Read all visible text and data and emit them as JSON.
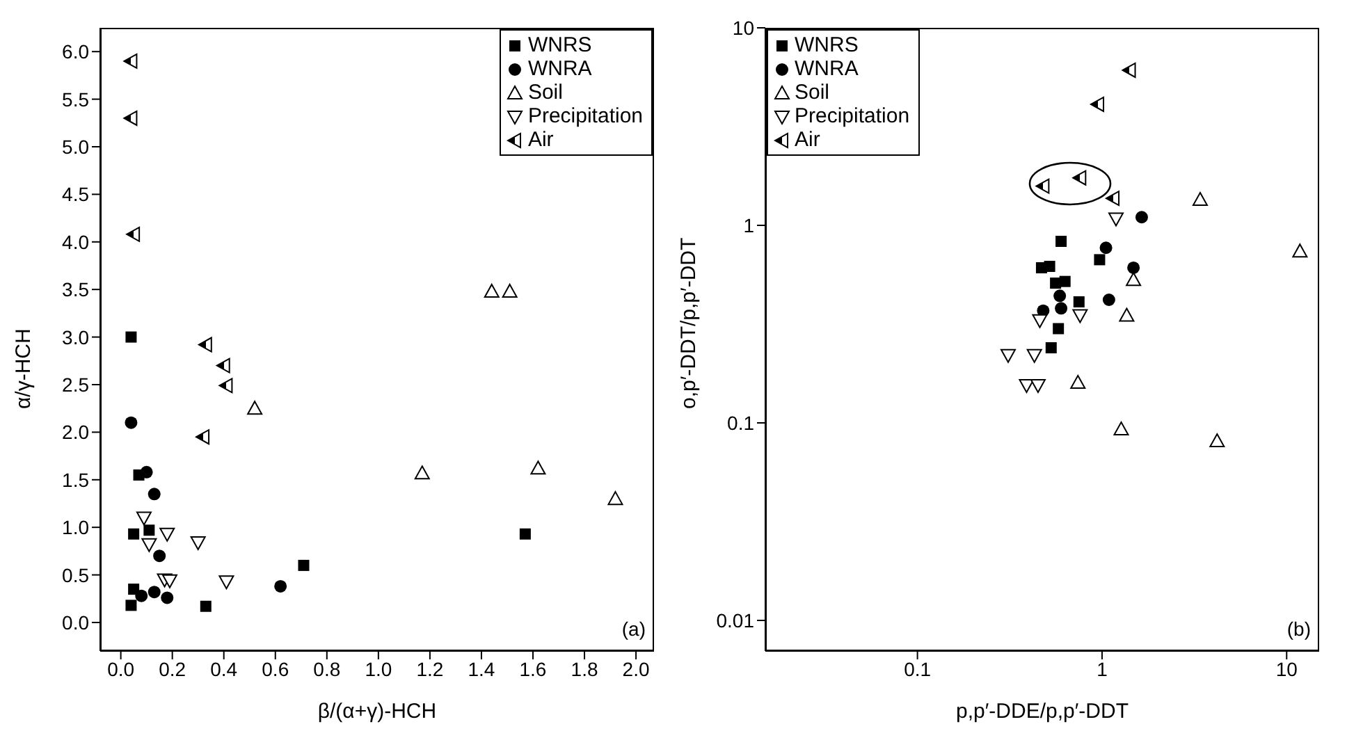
{
  "chart_data": [
    {
      "type": "scatter",
      "xlabel": "β/(α+γ)-HCH",
      "ylabel": "α/γ-HCH",
      "xlim": [
        -0.08,
        2.07
      ],
      "ylim": [
        -0.3,
        6.25
      ],
      "xticks": [
        {
          "value": 0,
          "label": "0.0"
        },
        {
          "value": 0.2,
          "label": "0.2"
        },
        {
          "value": 0.4,
          "label": "0.4"
        },
        {
          "value": 0.6,
          "label": "0.6"
        },
        {
          "value": 0.8,
          "label": "0.8"
        },
        {
          "value": 1,
          "label": "1.0"
        },
        {
          "value": 1.2,
          "label": "1.2"
        },
        {
          "value": 1.4,
          "label": "1.4"
        },
        {
          "value": 1.6,
          "label": "1.6"
        },
        {
          "value": 1.8,
          "label": "1.8"
        },
        {
          "value": 2,
          "label": "2.0"
        }
      ],
      "yticks": [
        {
          "value": 0,
          "label": "0.0"
        },
        {
          "value": 0.5,
          "label": "0.5"
        },
        {
          "value": 1,
          "label": "1.0"
        },
        {
          "value": 1.5,
          "label": "1.5"
        },
        {
          "value": 2,
          "label": "2.0"
        },
        {
          "value": 2.5,
          "label": "2.5"
        },
        {
          "value": 3,
          "label": "3.0"
        },
        {
          "value": 3.5,
          "label": "3.5"
        },
        {
          "value": 4,
          "label": "4.0"
        },
        {
          "value": 4.5,
          "label": "4.5"
        },
        {
          "value": 5,
          "label": "5.0"
        },
        {
          "value": 5.5,
          "label": "5.5"
        },
        {
          "value": 6,
          "label": "6.0"
        }
      ],
      "grid": false,
      "legend": "top right",
      "annotations": [
        "(a)"
      ],
      "series": [
        {
          "name": "WNRS",
          "color": "#000000",
          "marker": "square",
          "x": [
            0.04,
            0.05,
            0.07,
            0.11,
            1.57,
            0.71,
            0.05,
            0.04,
            0.33
          ],
          "values": [
            3.0,
            0.93,
            1.55,
            0.97,
            0.93,
            0.6,
            0.35,
            0.18,
            0.17
          ]
        },
        {
          "name": "WNRA",
          "color": "#000000",
          "marker": "circle",
          "x": [
            0.04,
            0.1,
            0.13,
            0.15,
            0.62,
            0.08,
            0.13,
            0.18
          ],
          "values": [
            2.1,
            1.58,
            1.35,
            0.7,
            0.38,
            0.28,
            0.32,
            0.26
          ]
        },
        {
          "name": "Soil",
          "color": "#000000",
          "marker": "triangle",
          "x": [
            1.44,
            1.51,
            0.52,
            1.17,
            1.62,
            1.92
          ],
          "values": [
            3.48,
            3.48,
            2.25,
            1.57,
            1.62,
            1.3
          ]
        },
        {
          "name": "Precipitation",
          "color": "#000000",
          "marker": "triangle-down",
          "x": [
            0.09,
            0.11,
            0.18,
            0.3,
            0.17,
            0.19,
            0.41
          ],
          "values": [
            1.1,
            0.82,
            0.93,
            0.84,
            0.45,
            0.44,
            0.43
          ]
        },
        {
          "name": "Air",
          "color": "#000000",
          "marker": "triangle-left",
          "x": [
            0.04,
            0.04,
            0.05,
            0.33,
            0.4,
            0.41,
            0.32
          ],
          "values": [
            5.9,
            5.3,
            4.08,
            2.92,
            2.7,
            2.49,
            1.95
          ]
        }
      ]
    },
    {
      "type": "scatter",
      "xlabel": "p,p′-DDE/p,p′-DDT",
      "ylabel": "o,p′-DDT/p,p′-DDT",
      "log": "xy",
      "xlim": [
        0.015,
        15
      ],
      "ylim": [
        0.007,
        10
      ],
      "xticks": [
        0.1,
        1,
        10
      ],
      "yticks": [
        0.01,
        0.1,
        1,
        10
      ],
      "grid": false,
      "legend": "top left",
      "annotations": [
        "(b)"
      ],
      "series": [
        {
          "name": "WNRS",
          "color": "#000000",
          "marker": "square",
          "x": [
            0.6,
            0.47,
            0.52,
            0.97,
            0.63,
            0.56,
            0.75,
            0.58,
            0.53
          ],
          "values": [
            0.83,
            0.61,
            0.62,
            0.67,
            0.52,
            0.51,
            0.41,
            0.3,
            0.24
          ]
        },
        {
          "name": "WNRA",
          "color": "#000000",
          "marker": "circle",
          "x": [
            1.64,
            1.05,
            1.48,
            1.09,
            0.48,
            0.59,
            0.6
          ],
          "values": [
            1.1,
            0.77,
            0.61,
            0.42,
            0.37,
            0.44,
            0.38
          ]
        },
        {
          "name": "Soil",
          "color": "#000000",
          "marker": "triangle",
          "x": [
            3.4,
            11.8,
            1.48,
            1.36,
            0.74,
            1.27,
            4.2
          ],
          "values": [
            1.35,
            0.74,
            0.53,
            0.35,
            0.16,
            0.093,
            0.081
          ]
        },
        {
          "name": "Precipitation",
          "color": "#000000",
          "marker": "triangle-down",
          "x": [
            1.19,
            0.46,
            0.76,
            0.31,
            0.43,
            0.39,
            0.45
          ],
          "values": [
            1.08,
            0.33,
            0.35,
            0.22,
            0.22,
            0.155,
            0.155
          ]
        },
        {
          "name": "Air",
          "color": "#000000",
          "marker": "triangle-left",
          "x": [
            1.41,
            0.95,
            0.48,
            0.76,
            1.15
          ],
          "values": [
            6.1,
            4.1,
            1.58,
            1.74,
            1.37
          ]
        }
      ]
    }
  ]
}
